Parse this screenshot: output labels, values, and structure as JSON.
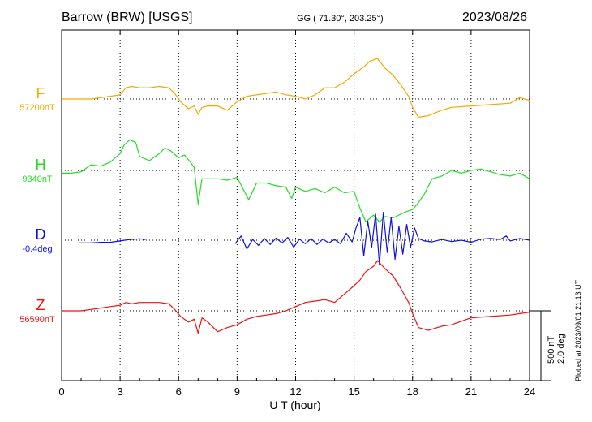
{
  "chart_data": {
    "type": "line",
    "title_left": "Barrow (BRW)  [USGS]",
    "title_center": "GG ( 71.30°, 203.25°)",
    "date": "2023/08/26",
    "xlabel": "U T (hour)",
    "xlim": [
      0,
      24
    ],
    "x_ticks": [
      "0",
      "3",
      "6",
      "9",
      "12",
      "15",
      "18",
      "21",
      "24"
    ],
    "grid": true,
    "scale_bar": {
      "label_nt": "500 nT",
      "label_deg": "2.0 deg"
    },
    "plotted_note": "Plotted at 2023/09/01 21:13 UT",
    "series": [
      {
        "name": "F",
        "baseline_label": "57200nT",
        "color": "#f5a800",
        "x": [
          0,
          0.5,
          1,
          1.5,
          2,
          2.5,
          3,
          3.3,
          3.6,
          4,
          4.5,
          5,
          5.5,
          5.8,
          6.1,
          6.5,
          6.8,
          7,
          7.2,
          7.5,
          8,
          8.5,
          9,
          9.5,
          10,
          10.5,
          11,
          11.5,
          12,
          12.5,
          13,
          13.5,
          14,
          14.5,
          15,
          15.5,
          15.8,
          16.2,
          16.6,
          17,
          17.4,
          17.8,
          18,
          18.3,
          18.8,
          19.5,
          20,
          21,
          22,
          23,
          23.5,
          24
        ],
        "y": [
          0,
          0,
          0,
          0,
          10,
          20,
          30,
          80,
          90,
          80,
          80,
          90,
          80,
          40,
          -20,
          -70,
          -50,
          -110,
          -60,
          -50,
          -50,
          -80,
          -20,
          20,
          30,
          40,
          50,
          30,
          20,
          0,
          30,
          80,
          80,
          120,
          180,
          230,
          270,
          290,
          220,
          170,
          100,
          20,
          -60,
          -130,
          -120,
          -80,
          -60,
          -50,
          -40,
          -30,
          10,
          -10
        ]
      },
      {
        "name": "H",
        "baseline_label": "9340nT",
        "color": "#22dd22",
        "x": [
          0,
          0.5,
          1,
          1.5,
          2,
          2.5,
          3,
          3.2,
          3.5,
          3.8,
          4,
          4.5,
          5,
          5.3,
          5.6,
          6,
          6.3,
          6.6,
          6.8,
          7,
          7.2,
          7.5,
          8,
          8.5,
          9,
          9.3,
          9.6,
          10,
          10.5,
          11,
          11.5,
          11.8,
          12,
          12.5,
          13,
          13.5,
          14,
          14.5,
          15,
          15.3,
          15.6,
          16,
          16.3,
          16.6,
          17,
          17.3,
          17.6,
          18,
          18.3,
          18.6,
          19,
          19.5,
          20,
          20.5,
          21,
          21.5,
          22,
          22.5,
          23,
          23.5,
          24
        ],
        "y": [
          -20,
          -20,
          -10,
          40,
          30,
          60,
          120,
          180,
          220,
          200,
          100,
          70,
          120,
          160,
          140,
          90,
          110,
          60,
          20,
          -240,
          -60,
          -60,
          -60,
          -70,
          -50,
          -130,
          -210,
          -90,
          -90,
          -110,
          -120,
          -200,
          -120,
          -150,
          -130,
          -160,
          -120,
          -160,
          -150,
          -270,
          -370,
          -320,
          -370,
          -330,
          -340,
          -320,
          -300,
          -280,
          -230,
          -170,
          -60,
          -40,
          0,
          -20,
          0,
          10,
          -10,
          -30,
          -40,
          -20,
          -60
        ]
      },
      {
        "name": "D",
        "baseline_label": "-0.4deg",
        "color": "#1010dd",
        "segments": [
          {
            "x": [
              0.9,
              1.5,
              2,
              2.5,
              3,
              3.5,
              4,
              4.3
            ],
            "y": [
              -0.08,
              -0.08,
              -0.06,
              -0.06,
              -0.02,
              0.02,
              0.04,
              0.02
            ]
          },
          {
            "x": [
              8.9,
              9.2,
              9.5,
              9.8,
              10.1,
              10.4,
              10.7,
              11,
              11.3,
              11.6,
              11.9,
              12.2,
              12.5,
              12.8,
              13.1,
              13.4,
              13.7,
              14,
              14.3,
              14.6,
              14.9,
              15.1,
              15.3,
              15.5,
              15.7,
              15.9,
              16.1,
              16.3,
              16.5,
              16.7,
              16.9,
              17.1,
              17.3,
              17.5,
              17.7,
              17.9,
              18.1,
              18.3,
              18.6,
              19,
              19.5,
              20,
              20.5,
              21,
              21.5,
              22,
              22.5,
              22.8,
              23,
              23.5,
              24
            ],
            "y": [
              -0.1,
              0.12,
              -0.25,
              0.02,
              -0.15,
              0.05,
              -0.12,
              0.06,
              -0.08,
              0.08,
              -0.2,
              0.03,
              -0.1,
              0.05,
              -0.12,
              0.03,
              -0.08,
              0.02,
              -0.1,
              0.2,
              -0.05,
              0.35,
              0.65,
              -0.45,
              0.55,
              -0.2,
              0.75,
              -0.7,
              0.8,
              -0.35,
              0.65,
              -0.55,
              0.4,
              -0.4,
              0.45,
              -0.2,
              0.35,
              0.05,
              -0.02,
              -0.05,
              0.02,
              -0.04,
              0.0,
              -0.06,
              0.03,
              0.05,
              0.02,
              0.12,
              -0.02,
              0.05,
              0.0
            ]
          }
        ]
      },
      {
        "name": "Z",
        "baseline_label": "56590nT",
        "color": "#ee1111",
        "x": [
          0,
          0.5,
          1,
          1.5,
          2,
          2.5,
          3,
          3.3,
          3.6,
          4,
          4.5,
          5,
          5.5,
          5.8,
          6.1,
          6.5,
          6.8,
          7,
          7.2,
          7.5,
          8,
          8.5,
          9,
          9.5,
          10,
          10.5,
          11,
          11.5,
          12,
          12.5,
          13,
          13.5,
          14,
          14.5,
          15,
          15.3,
          15.6,
          16,
          16.2,
          16.6,
          17,
          17.4,
          17.8,
          18,
          18.3,
          18.8,
          19.5,
          20,
          21,
          22,
          23,
          23.5,
          24
        ],
        "y": [
          0,
          0,
          0,
          10,
          20,
          30,
          40,
          60,
          50,
          60,
          60,
          60,
          50,
          10,
          -40,
          -80,
          -60,
          -160,
          -50,
          -80,
          -150,
          -120,
          -100,
          -60,
          -40,
          -30,
          -20,
          0,
          30,
          60,
          70,
          80,
          60,
          120,
          180,
          220,
          280,
          320,
          360,
          300,
          250,
          160,
          60,
          -20,
          -120,
          -140,
          -110,
          -100,
          -50,
          -40,
          -30,
          -20,
          -10
        ]
      }
    ]
  }
}
